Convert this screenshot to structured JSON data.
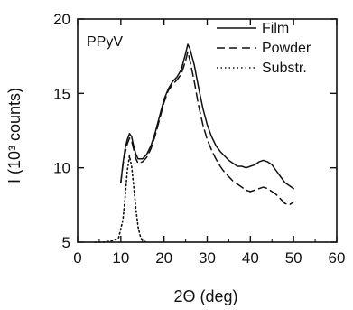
{
  "chart_data": {
    "type": "line",
    "annotation": "PPyV",
    "xlabel": "2Θ (deg)",
    "ylabel": "I (10³ counts)",
    "xlim": [
      0,
      60
    ],
    "ylim": [
      5,
      20
    ],
    "xticks": [
      0,
      10,
      20,
      30,
      40,
      50,
      60
    ],
    "yticks": [
      5,
      10,
      15,
      20
    ],
    "grid": false,
    "legend_position": "top-right",
    "series": [
      {
        "name": "Film",
        "style": "solid",
        "points": [
          [
            10,
            9.0
          ],
          [
            10.5,
            10.3
          ],
          [
            11,
            11.3
          ],
          [
            11.5,
            11.9
          ],
          [
            12,
            12.3
          ],
          [
            12.5,
            12.1
          ],
          [
            13,
            11.4
          ],
          [
            13.5,
            10.9
          ],
          [
            14,
            10.6
          ],
          [
            15,
            10.6
          ],
          [
            16,
            10.9
          ],
          [
            17,
            11.5
          ],
          [
            18,
            12.4
          ],
          [
            19,
            13.5
          ],
          [
            20,
            14.6
          ],
          [
            21,
            15.3
          ],
          [
            22,
            15.8
          ],
          [
            23,
            16.1
          ],
          [
            24,
            16.6
          ],
          [
            25,
            17.7
          ],
          [
            25.5,
            18.3
          ],
          [
            26,
            18.0
          ],
          [
            27,
            16.9
          ],
          [
            28,
            15.4
          ],
          [
            29,
            14.0
          ],
          [
            30,
            12.9
          ],
          [
            31,
            12.1
          ],
          [
            32,
            11.5
          ],
          [
            33,
            11.1
          ],
          [
            34,
            10.8
          ],
          [
            35,
            10.5
          ],
          [
            36,
            10.3
          ],
          [
            37,
            10.1
          ],
          [
            38,
            10.1
          ],
          [
            39,
            10.0
          ],
          [
            40,
            10.1
          ],
          [
            41,
            10.2
          ],
          [
            42,
            10.4
          ],
          [
            43,
            10.5
          ],
          [
            44,
            10.4
          ],
          [
            45,
            10.2
          ],
          [
            46,
            9.8
          ],
          [
            47,
            9.4
          ],
          [
            48,
            9.0
          ],
          [
            49,
            8.8
          ],
          [
            50,
            8.6
          ]
        ]
      },
      {
        "name": "Powder",
        "style": "dashed",
        "points": [
          [
            10,
            9.0
          ],
          [
            10.5,
            10.2
          ],
          [
            11,
            11.0
          ],
          [
            11.5,
            11.6
          ],
          [
            12,
            12.0
          ],
          [
            12.5,
            11.8
          ],
          [
            13,
            11.2
          ],
          [
            13.5,
            10.6
          ],
          [
            14,
            10.3
          ],
          [
            15,
            10.4
          ],
          [
            16,
            10.7
          ],
          [
            17,
            11.3
          ],
          [
            18,
            12.2
          ],
          [
            19,
            13.3
          ],
          [
            20,
            14.4
          ],
          [
            21,
            15.2
          ],
          [
            22,
            15.6
          ],
          [
            23,
            15.9
          ],
          [
            24,
            16.3
          ],
          [
            25,
            17.2
          ],
          [
            25.5,
            17.8
          ],
          [
            26,
            17.2
          ],
          [
            27,
            15.8
          ],
          [
            28,
            14.2
          ],
          [
            29,
            12.9
          ],
          [
            30,
            11.9
          ],
          [
            31,
            11.2
          ],
          [
            32,
            10.6
          ],
          [
            33,
            10.1
          ],
          [
            34,
            9.7
          ],
          [
            35,
            9.4
          ],
          [
            36,
            9.1
          ],
          [
            37,
            8.9
          ],
          [
            38,
            8.7
          ],
          [
            39,
            8.5
          ],
          [
            40,
            8.4
          ],
          [
            41,
            8.5
          ],
          [
            42,
            8.6
          ],
          [
            43,
            8.7
          ],
          [
            44,
            8.6
          ],
          [
            45,
            8.4
          ],
          [
            46,
            8.2
          ],
          [
            47,
            7.9
          ],
          [
            48,
            7.6
          ],
          [
            49,
            7.5
          ],
          [
            50,
            7.7
          ]
        ]
      },
      {
        "name": "Substr.",
        "style": "dotted",
        "points": [
          [
            4,
            5.0
          ],
          [
            6,
            5.0
          ],
          [
            8,
            5.1
          ],
          [
            9.5,
            5.3
          ],
          [
            10.5,
            6.5
          ],
          [
            11,
            8.0
          ],
          [
            11.5,
            9.8
          ],
          [
            12,
            10.8
          ],
          [
            12.5,
            10.1
          ],
          [
            13,
            8.7
          ],
          [
            13.5,
            7.2
          ],
          [
            14,
            6.0
          ],
          [
            14.5,
            5.4
          ],
          [
            15,
            5.1
          ],
          [
            16,
            5.0
          ]
        ]
      }
    ]
  }
}
